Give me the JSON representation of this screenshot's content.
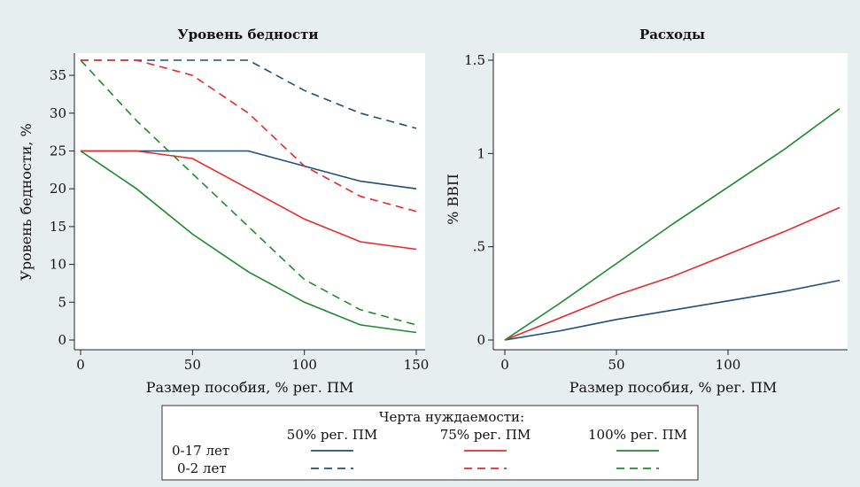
{
  "chart_data": [
    {
      "type": "line",
      "title": "Уровень бедности",
      "xlabel": "Размер пособия, % рег. ПМ",
      "ylabel": "Уровень бедности, %",
      "xlim": [
        0,
        150
      ],
      "ylim": [
        0,
        37
      ],
      "xticks": [
        0,
        50,
        100,
        150
      ],
      "yticks": [
        0,
        5,
        10,
        15,
        20,
        25,
        30,
        35
      ],
      "grid": false,
      "x": [
        0,
        25,
        50,
        75,
        100,
        125,
        150
      ],
      "series": [
        {
          "name": "50% рег. ПМ, 0-17 лет",
          "color": "#1f4e79",
          "dash": false,
          "values": [
            25,
            25,
            25,
            25,
            23,
            21,
            20
          ]
        },
        {
          "name": "75% рег. ПМ, 0-17 лет",
          "color": "#e8292a",
          "dash": false,
          "values": [
            25,
            25,
            24,
            20,
            16,
            13,
            12
          ]
        },
        {
          "name": "100% рег. ПМ, 0-17 лет",
          "color": "#1c8a2c",
          "dash": false,
          "values": [
            25,
            20,
            14,
            9,
            5,
            2,
            1
          ]
        },
        {
          "name": "50% рег. ПМ, 0-2 лет",
          "color": "#1f4e79",
          "dash": true,
          "values": [
            37,
            37,
            37,
            37,
            33,
            30,
            28
          ]
        },
        {
          "name": "75% рег. ПМ, 0-2 лет",
          "color": "#e8292a",
          "dash": true,
          "values": [
            37,
            37,
            35,
            30,
            23,
            19,
            17
          ]
        },
        {
          "name": "100% рег. ПМ, 0-2 лет",
          "color": "#1c8a2c",
          "dash": true,
          "values": [
            37,
            29,
            22,
            15,
            8,
            4,
            2
          ]
        }
      ]
    },
    {
      "type": "line",
      "title": "Расходы",
      "xlabel": "Размер пособия, % рег. ПМ",
      "ylabel": "% ВВП",
      "xlim": [
        0,
        150
      ],
      "ylim": [
        0,
        1.5
      ],
      "xticks": [
        0,
        50,
        100
      ],
      "yticks": [
        0,
        0.5,
        1,
        1.5
      ],
      "ytick_labels": [
        "0",
        ".5",
        "1",
        "1.5"
      ],
      "grid": false,
      "x": [
        0,
        25,
        50,
        75,
        100,
        125,
        150
      ],
      "series": [
        {
          "name": "50% рег. ПМ",
          "color": "#1f4e79",
          "dash": false,
          "values": [
            0,
            0.05,
            0.11,
            0.16,
            0.21,
            0.26,
            0.32
          ]
        },
        {
          "name": "75% рег. ПМ",
          "color": "#e8292a",
          "dash": false,
          "values": [
            0,
            0.12,
            0.24,
            0.34,
            0.46,
            0.58,
            0.71
          ]
        },
        {
          "name": "100% рег. ПМ",
          "color": "#1c8a2c",
          "dash": false,
          "values": [
            0,
            0.2,
            0.41,
            0.62,
            0.82,
            1.02,
            1.24
          ]
        }
      ]
    }
  ],
  "legend": {
    "title": "Черта нуждаемости:",
    "columns": [
      "50% рег. ПМ",
      "75% рег. ПМ",
      "100% рег. ПМ"
    ],
    "rows": [
      "0-17 лет",
      "0-2 лет"
    ],
    "colors": [
      "#1f4e79",
      "#e8292a",
      "#1c8a2c"
    ]
  }
}
